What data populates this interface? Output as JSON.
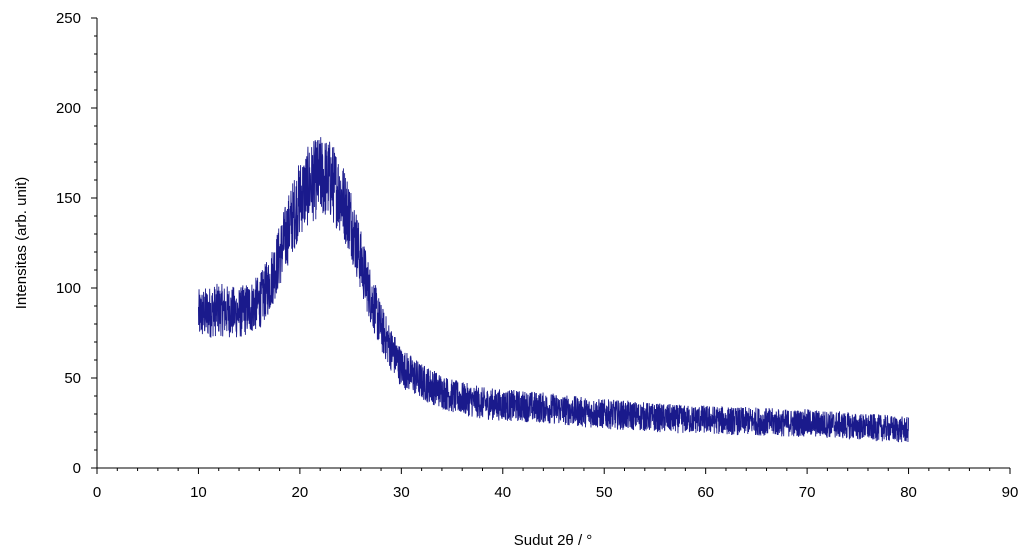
{
  "chart_data": {
    "type": "line",
    "title": "",
    "xlabel": "Sudut 2θ / °",
    "ylabel": "Intensitas (arb. unit)",
    "xlim": [
      0,
      90
    ],
    "ylim": [
      0,
      250
    ],
    "xticks": [
      "0",
      "10",
      "20",
      "30",
      "40",
      "50",
      "60",
      "70",
      "80",
      "90"
    ],
    "yticks": [
      "0",
      "50",
      "100",
      "150",
      "200",
      "250"
    ],
    "grid": false,
    "legend": "none",
    "series_color": "#1a1a8c",
    "series": [
      {
        "x": [
          10,
          12,
          14,
          16,
          17,
          18,
          19,
          20,
          21,
          22,
          23,
          24,
          25,
          26,
          27,
          28,
          29,
          30,
          32,
          35,
          38,
          40,
          43,
          45,
          48,
          50,
          53,
          55,
          58,
          60,
          63,
          65,
          68,
          70,
          73,
          75,
          78,
          80
        ],
        "values": [
          85,
          88,
          86,
          92,
          102,
          118,
          135,
          150,
          158,
          162,
          160,
          152,
          138,
          115,
          95,
          78,
          66,
          56,
          48,
          40,
          36,
          35,
          34,
          33,
          31,
          30,
          29,
          28,
          27,
          27,
          26,
          26,
          25,
          25,
          24,
          23,
          22,
          21
        ]
      }
    ]
  }
}
